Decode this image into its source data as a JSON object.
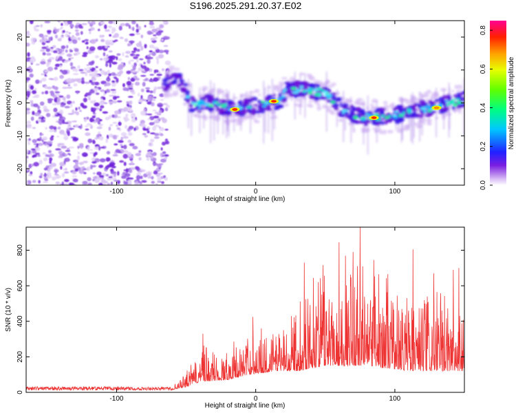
{
  "title": "S196.2025.291.20.37.E02",
  "chart_data": [
    {
      "type": "heatmap",
      "name": "spectrogram",
      "xlabel": "Height of straight line (km)",
      "ylabel": "Frequency (Hz)",
      "xlim": [
        -165,
        150
      ],
      "ylim": [
        -25,
        25
      ],
      "xticks": [
        -100,
        0,
        100
      ],
      "yticks": [
        -20,
        -10,
        0,
        10,
        20
      ],
      "colorbar": {
        "label": "Normalized spectral amplitude",
        "range": [
          0.0,
          0.85
        ],
        "ticks": [
          "0.0",
          "0.2",
          "0.4",
          "0.6",
          "0.8"
        ]
      },
      "noise_region_x": [
        -165,
        -63
      ],
      "ridge": [
        {
          "x": -65,
          "y": 6
        },
        {
          "x": -55,
          "y": 7.5
        },
        {
          "x": -50,
          "y": 3
        },
        {
          "x": -45,
          "y": -1
        },
        {
          "x": -35,
          "y": 0
        },
        {
          "x": -20,
          "y": -1.5
        },
        {
          "x": -10,
          "y": -1.5
        },
        {
          "x": 0,
          "y": -1
        },
        {
          "x": 10,
          "y": 0
        },
        {
          "x": 18,
          "y": 1
        },
        {
          "x": 22,
          "y": 4
        },
        {
          "x": 35,
          "y": 4
        },
        {
          "x": 50,
          "y": 3
        },
        {
          "x": 58,
          "y": 0
        },
        {
          "x": 65,
          "y": -3
        },
        {
          "x": 80,
          "y": -4.5
        },
        {
          "x": 95,
          "y": -4
        },
        {
          "x": 110,
          "y": -3
        },
        {
          "x": 125,
          "y": -1.5
        },
        {
          "x": 140,
          "y": 0
        },
        {
          "x": 150,
          "y": 1
        }
      ],
      "hotspots": [
        {
          "x": -15,
          "y": -2,
          "amp": 0.85
        },
        {
          "x": 13,
          "y": 0.5,
          "amp": 0.85
        },
        {
          "x": 85,
          "y": -4.5,
          "amp": 0.85
        },
        {
          "x": 130,
          "y": -1.5,
          "amp": 0.7
        }
      ]
    },
    {
      "type": "line",
      "name": "snr",
      "xlabel": "Height of straight line (km)",
      "ylabel": "SNR (10 * v/v)",
      "xlim": [
        -165,
        150
      ],
      "ylim": [
        0,
        930
      ],
      "xticks": [
        -100,
        0,
        100
      ],
      "yticks": [
        0,
        200,
        400,
        600,
        800
      ],
      "color": "#ee3333",
      "envelope": [
        {
          "x": -165,
          "base": 15,
          "amp": 25
        },
        {
          "x": -60,
          "base": 15,
          "amp": 25
        },
        {
          "x": -50,
          "base": 30,
          "amp": 90
        },
        {
          "x": -40,
          "base": 60,
          "amp": 230
        },
        {
          "x": -20,
          "base": 70,
          "amp": 200
        },
        {
          "x": -5,
          "base": 100,
          "amp": 260
        },
        {
          "x": 15,
          "base": 120,
          "amp": 300
        },
        {
          "x": 30,
          "base": 120,
          "amp": 520
        },
        {
          "x": 50,
          "base": 150,
          "amp": 720
        },
        {
          "x": 80,
          "base": 150,
          "amp": 660
        },
        {
          "x": 110,
          "base": 120,
          "amp": 560
        },
        {
          "x": 150,
          "base": 120,
          "amp": 450
        }
      ],
      "peaks": [
        {
          "x": 75,
          "y": 928
        },
        {
          "x": 60,
          "y": 845
        },
        {
          "x": 113,
          "y": 805
        },
        {
          "x": 70,
          "y": 790
        },
        {
          "x": 85,
          "y": 745
        },
        {
          "x": 35,
          "y": 730
        },
        {
          "x": 142,
          "y": 690
        },
        {
          "x": 146,
          "y": 700
        },
        {
          "x": 128,
          "y": 670
        },
        {
          "x": 45,
          "y": 620
        },
        {
          "x": -2,
          "y": 425
        },
        {
          "x": -38,
          "y": 330
        },
        {
          "x": 20,
          "y": 350
        },
        {
          "x": 150,
          "y": 350
        }
      ]
    }
  ]
}
